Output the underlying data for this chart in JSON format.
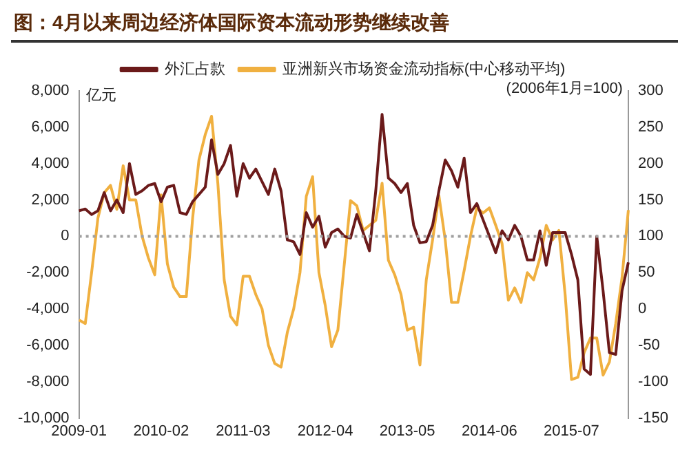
{
  "chart_data": {
    "type": "line",
    "title": "图：4月以来周边经济体国际资本流动形势继续改善",
    "ylabel": "亿元",
    "y2label": "(2006年1月=100)",
    "categories": [
      "2009-01",
      null,
      null,
      null,
      null,
      null,
      null,
      null,
      null,
      null,
      null,
      null,
      null,
      "2010-02",
      null,
      null,
      null,
      null,
      null,
      null,
      null,
      null,
      null,
      null,
      null,
      null,
      "2011-03",
      null,
      null,
      null,
      null,
      null,
      null,
      null,
      null,
      null,
      null,
      null,
      null,
      "2012-04",
      null,
      null,
      null,
      null,
      null,
      null,
      null,
      null,
      null,
      null,
      null,
      null,
      "2013-05",
      null,
      null,
      null,
      null,
      null,
      null,
      null,
      null,
      null,
      null,
      null,
      null,
      "2014-06",
      null,
      null,
      null,
      null,
      null,
      null,
      null,
      null,
      null,
      null,
      null,
      null,
      "2015-07",
      null,
      null,
      null,
      null,
      null,
      null,
      null,
      null,
      null
    ],
    "series": [
      {
        "name": "外汇占款",
        "color": "#6b1a1a",
        "values": [
          1400,
          1500,
          1200,
          1400,
          2400,
          1400,
          2000,
          1300,
          4000,
          2300,
          2500,
          2800,
          2900,
          1900,
          2700,
          2800,
          1300,
          1200,
          1900,
          2300,
          2700,
          5300,
          3400,
          4000,
          5000,
          2200,
          4000,
          3200,
          3700,
          3000,
          2300,
          3700,
          2500,
          -200,
          -300,
          -1000,
          1300,
          500,
          1100,
          -600,
          200,
          400,
          0,
          -100,
          1200,
          200,
          -800,
          2500,
          6700,
          3200,
          2900,
          2400,
          2900,
          600,
          -360,
          -300,
          600,
          2500,
          4200,
          3600,
          2700,
          4300,
          1300,
          1800,
          900,
          0,
          -900,
          300,
          -200,
          600,
          0,
          -1300,
          -1300,
          300,
          -1600,
          200,
          200,
          200,
          -1000,
          -2400,
          -7300,
          -7600,
          0,
          -3000,
          -6400,
          -6500,
          -3000,
          -1440
        ]
      },
      {
        "name": "亚洲新兴市场资金流动指标(中心移动平均)",
        "color": "#f0b040",
        "axis": "y2",
        "values": [
          -15,
          -20,
          50,
          125,
          160,
          170,
          137,
          197,
          150,
          150,
          100,
          70,
          47,
          157,
          62,
          30,
          17,
          17,
          125,
          205,
          240,
          265,
          172,
          40,
          -10,
          -22,
          45,
          45,
          20,
          0,
          -50,
          -75,
          -80,
          -32,
          0,
          50,
          155,
          182,
          50,
          5,
          -52,
          -29,
          60,
          149,
          142,
          108,
          115,
          122,
          173,
          67,
          47,
          20,
          -29,
          -25,
          -77,
          40,
          95,
          156,
          95,
          9,
          9,
          53,
          100,
          139,
          132,
          139,
          115,
          90,
          12,
          29,
          9,
          50,
          40,
          70,
          115,
          95,
          108,
          19,
          -97,
          -94,
          -60,
          -40,
          -40,
          -91,
          -73,
          -20,
          43,
          136
        ]
      }
    ],
    "ylim": [
      -10000,
      8000
    ],
    "yticks": [
      {
        "value": -10000,
        "label": "-10,000"
      },
      {
        "value": -8000,
        "label": "-8,000"
      },
      {
        "value": -6000,
        "label": "-6,000"
      },
      {
        "value": -4000,
        "label": "-4,000"
      },
      {
        "value": -2000,
        "label": "-2,000"
      },
      0,
      {
        "value": 2000,
        "label": "2,000"
      },
      {
        "value": 4000,
        "label": "4,000"
      },
      {
        "value": 6000,
        "label": "6,000"
      },
      {
        "value": 8000,
        "label": "8,000"
      }
    ],
    "y2lim": [
      -150,
      300
    ],
    "y2ticks": [
      -150,
      -100,
      -50,
      0,
      50,
      100,
      150,
      200,
      250,
      300
    ],
    "ref_lines": [
      {
        "axis": "y",
        "value": 0,
        "color": "#a0a0a0",
        "line_style": "dotted"
      }
    ],
    "legend": "top",
    "grid": false
  }
}
